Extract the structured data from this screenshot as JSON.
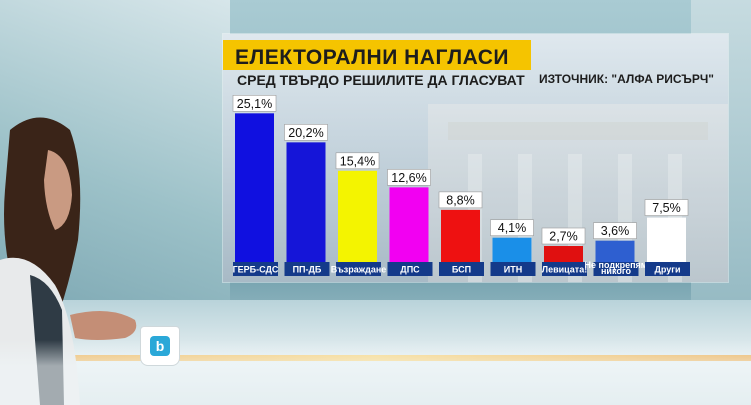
{
  "header": {
    "title": "ЕЛЕКТОРАЛНИ НАГЛАСИ",
    "subtitle": "СРЕД ТВЪРДО РЕШИЛИТЕ ДА ГЛАСУВАТ",
    "source": "ИЗТОЧНИК: \"АЛФА РИСЪРЧ\""
  },
  "mug": {
    "logo": "b"
  },
  "chart_data": {
    "type": "bar",
    "title": "ЕЛЕКТОРАЛНИ НАГЛАСИ",
    "subtitle": "СРЕД ТВЪРДО РЕШИЛИТЕ ДА ГЛАСУВАТ",
    "categories": [
      "ГЕРБ-СДС",
      "ПП-ДБ",
      "Възраждане",
      "ДПС",
      "БСП",
      "ИТН",
      "Левицата!",
      "Не подкрепям никого",
      "Други"
    ],
    "category_lines": [
      [
        "ГЕРБ-СДС"
      ],
      [
        "ПП-ДБ"
      ],
      [
        "Възраждане"
      ],
      [
        "ДПС"
      ],
      [
        "БСП"
      ],
      [
        "ИТН"
      ],
      [
        "Левицата!"
      ],
      [
        "Не подкрепям",
        "никого"
      ],
      [
        "Други"
      ]
    ],
    "values": [
      25.1,
      20.2,
      15.4,
      12.6,
      8.8,
      4.1,
      2.7,
      3.6,
      7.5
    ],
    "value_labels": [
      "25,1%",
      "20,2%",
      "15,4%",
      "12,6%",
      "8,8%",
      "4,1%",
      "2,7%",
      "3,6%",
      "7,5%"
    ],
    "colors": [
      "#1010e0",
      "#1515d8",
      "#f4f400",
      "#f200f2",
      "#ee1111",
      "#1a8fe8",
      "#e01010",
      "#2e5fd0",
      "#ffffff"
    ],
    "ylim": [
      0,
      26
    ],
    "grid": false,
    "legend": "none"
  }
}
